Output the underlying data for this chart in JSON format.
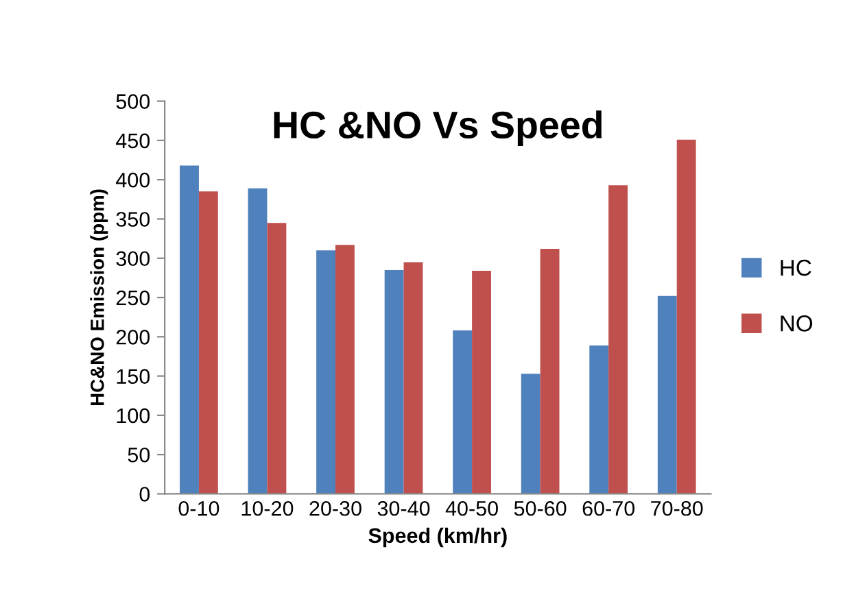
{
  "chart_data": {
    "type": "bar",
    "title": "HC &NO Vs Speed",
    "xlabel": "Speed (km/hr)",
    "ylabel": "HC&NO Emission (ppm)",
    "categories": [
      "0-10",
      "10-20",
      "20-30",
      "30-40",
      "40-50",
      "50-60",
      "60-70",
      "70-80"
    ],
    "series": [
      {
        "name": "HC",
        "color": "#4f81bd",
        "values": [
          418,
          389,
          310,
          285,
          208,
          153,
          189,
          252
        ]
      },
      {
        "name": "NO",
        "color": "#c0504d",
        "values": [
          385,
          345,
          317,
          295,
          284,
          312,
          393,
          451
        ]
      }
    ],
    "ylim": [
      0,
      500
    ],
    "yticks": [
      0,
      50,
      100,
      150,
      200,
      250,
      300,
      350,
      400,
      450,
      500
    ],
    "grid": false,
    "legend": "right"
  }
}
